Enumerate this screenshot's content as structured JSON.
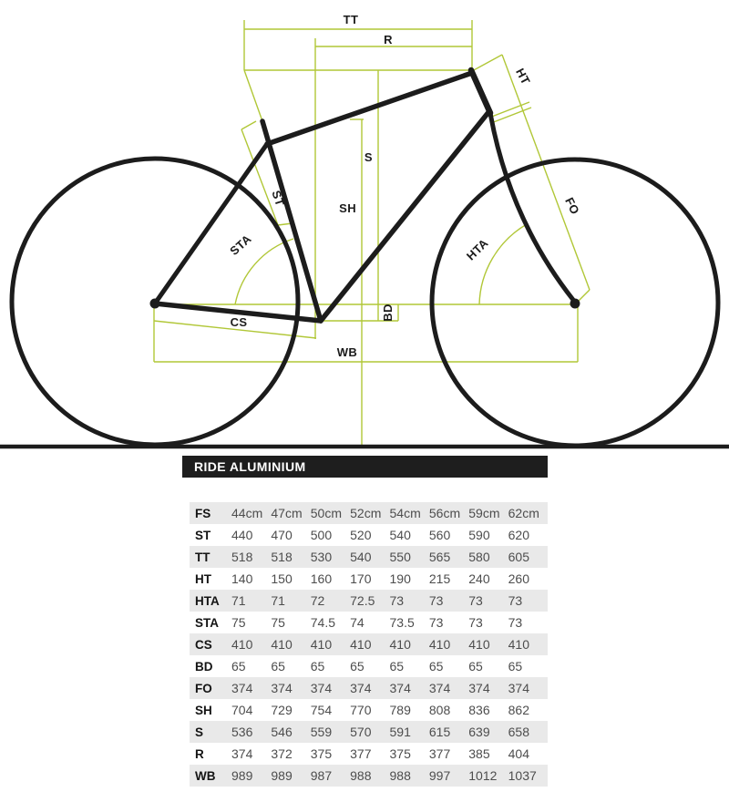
{
  "diagram": {
    "labels": {
      "tt": "TT",
      "r": "R",
      "ht": "HT",
      "s": "S",
      "sh": "SH",
      "st": "ST",
      "sta": "STA",
      "hta": "HTA",
      "fo": "FO",
      "cs": "CS",
      "bd": "BD",
      "wb": "WB"
    },
    "colors": {
      "measurement": "#b1c737",
      "frame": "#1c1c1c"
    }
  },
  "table": {
    "title": "RIDE ALUMINIUM",
    "rows": [
      {
        "label": "FS",
        "values": [
          "44cm",
          "47cm",
          "50cm",
          "52cm",
          "54cm",
          "56cm",
          "59cm",
          "62cm"
        ]
      },
      {
        "label": "ST",
        "values": [
          "440",
          "470",
          "500",
          "520",
          "540",
          "560",
          "590",
          "620"
        ]
      },
      {
        "label": "TT",
        "values": [
          "518",
          "518",
          "530",
          "540",
          "550",
          "565",
          "580",
          "605"
        ]
      },
      {
        "label": "HT",
        "values": [
          "140",
          "150",
          "160",
          "170",
          "190",
          "215",
          "240",
          "260"
        ]
      },
      {
        "label": "HTA",
        "values": [
          "71",
          "71",
          "72",
          "72.5",
          "73",
          "73",
          "73",
          "73"
        ]
      },
      {
        "label": "STA",
        "values": [
          "75",
          "75",
          "74.5",
          "74",
          "73.5",
          "73",
          "73",
          "73"
        ]
      },
      {
        "label": "CS",
        "values": [
          "410",
          "410",
          "410",
          "410",
          "410",
          "410",
          "410",
          "410"
        ]
      },
      {
        "label": "BD",
        "values": [
          "65",
          "65",
          "65",
          "65",
          "65",
          "65",
          "65",
          "65"
        ]
      },
      {
        "label": "FO",
        "values": [
          "374",
          "374",
          "374",
          "374",
          "374",
          "374",
          "374",
          "374"
        ]
      },
      {
        "label": "SH",
        "values": [
          "704",
          "729",
          "754",
          "770",
          "789",
          "808",
          "836",
          "862"
        ]
      },
      {
        "label": "S",
        "values": [
          "536",
          "546",
          "559",
          "570",
          "591",
          "615",
          "639",
          "658"
        ]
      },
      {
        "label": "R",
        "values": [
          "374",
          "372",
          "375",
          "377",
          "375",
          "377",
          "385",
          "404"
        ]
      },
      {
        "label": "WB",
        "values": [
          "989",
          "989",
          "987",
          "988",
          "988",
          "997",
          "1012",
          "1037"
        ]
      }
    ]
  }
}
